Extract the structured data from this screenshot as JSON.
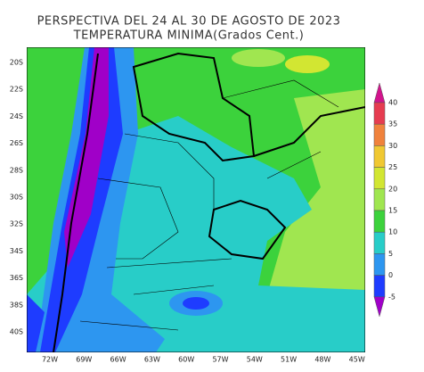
{
  "title": [
    "PERSPECTIVA DEL 24 AL 30 DE AGOSTO DE 2023",
    "TEMPERATURA MINIMA(Grados Cent.)"
  ],
  "lat_labels": [
    "20S",
    "22S",
    "24S",
    "26S",
    "28S",
    "30S",
    "32S",
    "34S",
    "36S",
    "38S",
    "40S"
  ],
  "lon_labels": [
    "72W",
    "69W",
    "66W",
    "63W",
    "60W",
    "57W",
    "54W",
    "51W",
    "48W",
    "45W"
  ],
  "colorbar": {
    "ticks": [
      40,
      35,
      30,
      25,
      20,
      15,
      10,
      5,
      0,
      -5
    ],
    "colors": [
      "#d2148c",
      "#e63c50",
      "#f0823c",
      "#f0c832",
      "#d2e632",
      "#a0e650",
      "#3cd23c",
      "#28cdc8",
      "#2d96f0",
      "#1e3cff",
      "#a000c8"
    ]
  }
}
